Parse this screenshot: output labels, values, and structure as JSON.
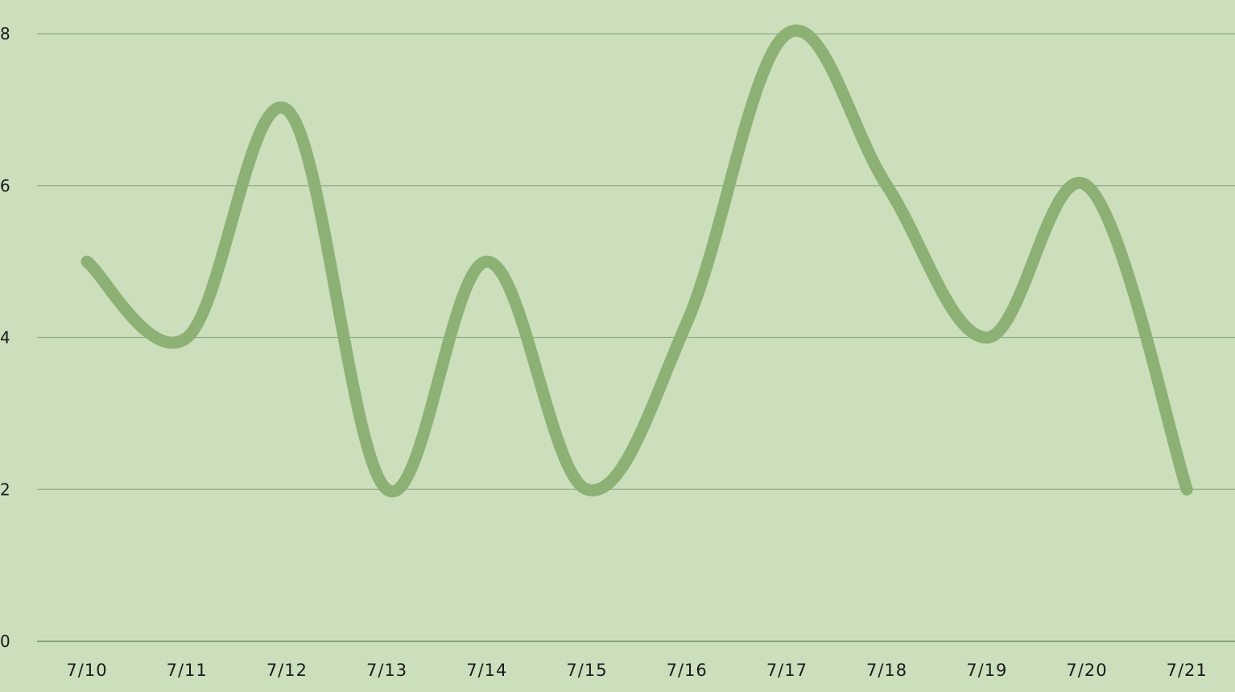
{
  "chart_data": {
    "type": "line",
    "title": "",
    "xlabel": "",
    "ylabel": "",
    "categories": [
      "7/10",
      "7/11",
      "7/12",
      "7/13",
      "7/14",
      "7/15",
      "7/16",
      "7/17",
      "7/18",
      "7/19",
      "7/20",
      "7/21"
    ],
    "series": [
      {
        "values": [
          5,
          4,
          7,
          2,
          5,
          2,
          4.2,
          8,
          6,
          4,
          6,
          2
        ]
      }
    ],
    "ylim": [
      0,
      8
    ],
    "yticks": [
      0,
      2,
      4,
      6,
      8
    ],
    "grid": true,
    "legend": "none",
    "colors": {
      "background": "#cbdfbd",
      "line": "#8db174",
      "grid": "#8fae85",
      "axis": "#6f8f68"
    }
  }
}
